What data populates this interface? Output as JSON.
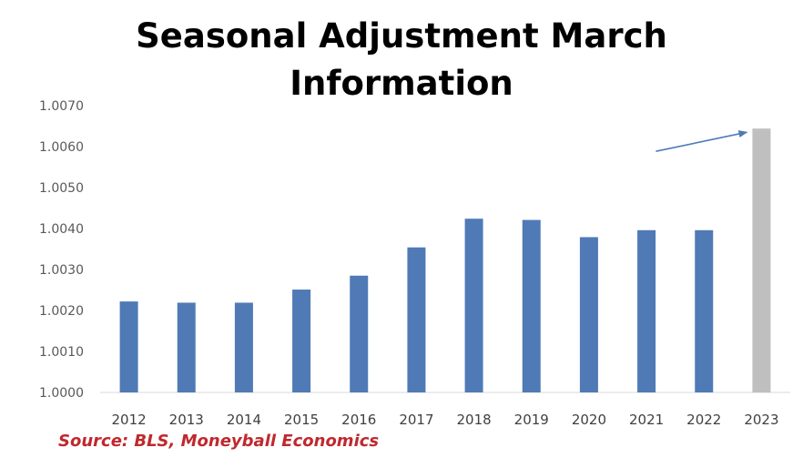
{
  "chart_data": {
    "type": "bar",
    "title_lines": [
      "Seasonal Adjustment March",
      "Information"
    ],
    "categories": [
      "2012",
      "2013",
      "2014",
      "2015",
      "2016",
      "2017",
      "2018",
      "2019",
      "2020",
      "2021",
      "2022",
      "2023"
    ],
    "values": [
      1.00222,
      1.00219,
      1.00219,
      1.00251,
      1.00285,
      1.00354,
      1.00424,
      1.00421,
      1.00379,
      1.00396,
      1.00396,
      1.00644
    ],
    "bar_colors": [
      "#4f7ab5",
      "#4f7ab5",
      "#4f7ab5",
      "#4f7ab5",
      "#4f7ab5",
      "#4f7ab5",
      "#4f7ab5",
      "#4f7ab5",
      "#4f7ab5",
      "#4f7ab5",
      "#4f7ab5",
      "#bfbfbf"
    ],
    "ylim": [
      1.0,
      1.007
    ],
    "yticks": [
      "1.0000",
      "1.0010",
      "1.0020",
      "1.0030",
      "1.0040",
      "1.0050",
      "1.0060",
      "1.0070"
    ],
    "grid": false,
    "annotation": {
      "type": "arrow",
      "points_to": "2023",
      "color": "#4f7ab5"
    },
    "source": "Source: BLS, Moneyball Economics"
  }
}
